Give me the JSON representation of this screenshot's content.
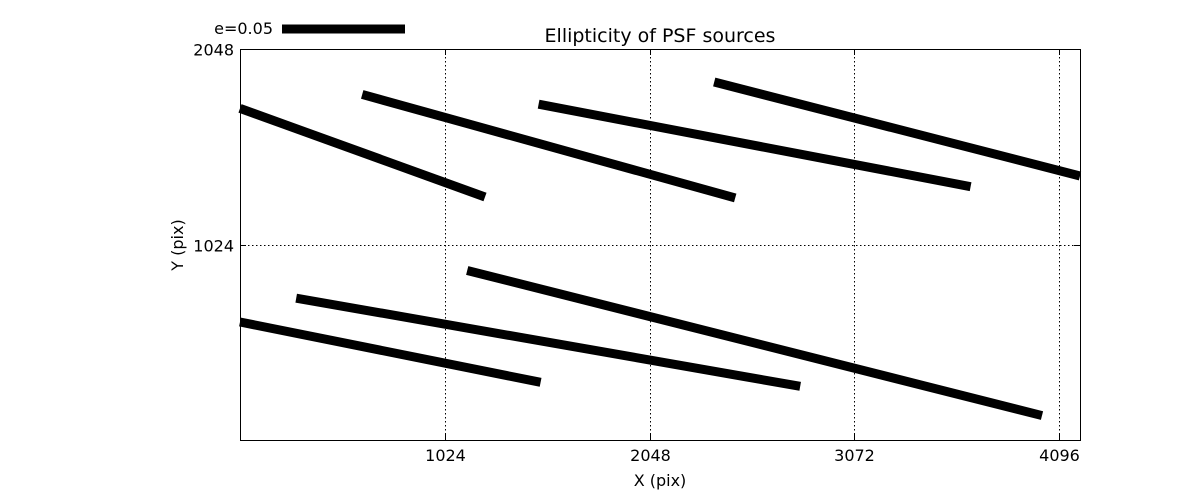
{
  "chart_data": {
    "type": "whisker",
    "title": "Ellipticity of PSF sources",
    "xlabel": "X (pix)",
    "ylabel": "Y (pix)",
    "xlim": [
      0,
      4200
    ],
    "ylim": [
      0,
      2048
    ],
    "xticks": [
      1024,
      2048,
      3072,
      4096
    ],
    "xtick_labels": [
      "1024",
      "2048",
      "3072",
      "4096"
    ],
    "yticks": [
      1024,
      2048
    ],
    "ytick_labels": [
      "1024",
      "2048"
    ],
    "grid": true,
    "legend": {
      "label": "e=0.05",
      "reference_length_px_units": 0.05,
      "position": "top-left-outside"
    },
    "segments": [
      {
        "x1": 0,
        "y1": 1737,
        "x2": 1225,
        "y2": 1273
      },
      {
        "x1": 611,
        "y1": 1810,
        "x2": 2476,
        "y2": 1268
      },
      {
        "x1": 1493,
        "y1": 1759,
        "x2": 3653,
        "y2": 1327
      },
      {
        "x1": 2371,
        "y1": 1875,
        "x2": 4200,
        "y2": 1383
      },
      {
        "x1": 0,
        "y1": 618,
        "x2": 1503,
        "y2": 302
      },
      {
        "x1": 281,
        "y1": 743,
        "x2": 2801,
        "y2": 281
      },
      {
        "x1": 1136,
        "y1": 888,
        "x2": 4010,
        "y2": 128
      }
    ]
  }
}
